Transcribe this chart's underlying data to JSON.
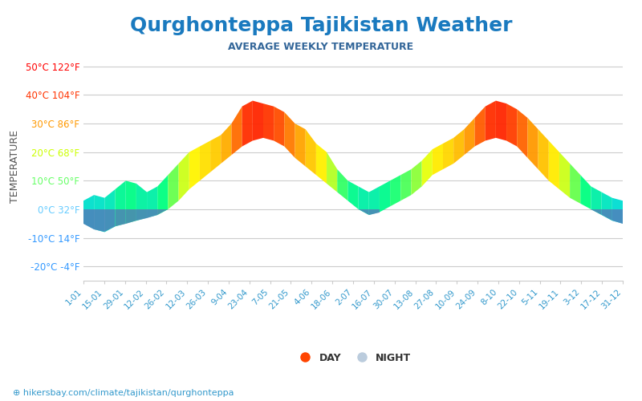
{
  "title": "Qurghonteppa Tajikistan Weather",
  "subtitle": "AVERAGE WEEKLY TEMPERATURE",
  "ylabel": "TEMPERATURE",
  "xlabel_ticks": [
    "1-01",
    "15-01",
    "29-01",
    "12-02",
    "26-02",
    "12-03",
    "26-03",
    "9-04",
    "23-04",
    "7-05",
    "21-05",
    "4-06",
    "18-06",
    "2-07",
    "16-07",
    "30-07",
    "13-08",
    "27-08",
    "10-09",
    "24-09",
    "8-10",
    "22-10",
    "5-11",
    "19-11",
    "3-12",
    "17-12",
    "31-12"
  ],
  "yticks": [
    -20,
    -10,
    0,
    10,
    20,
    30,
    40,
    50
  ],
  "ytick_labels": [
    "-20°C -4°F",
    "-10°C 14°F",
    "0°C 32°F",
    "10°C 50°F",
    "20°C 68°F",
    "30°C 86°F",
    "40°C 104°F",
    "50°C 122°F"
  ],
  "ytick_colors": [
    "#3399ff",
    "#3399ff",
    "#66ccff",
    "#66ff66",
    "#ccff00",
    "#ff9900",
    "#ff3300",
    "#ff0000"
  ],
  "ylim": [
    -25,
    55
  ],
  "watermark": "hikersbay.com/climate/tajikistan/qurghonteppa",
  "title_color": "#1a7abf",
  "subtitle_color": "#336699",
  "day_temps": [
    3,
    5,
    4,
    7,
    10,
    9,
    6,
    8,
    12,
    16,
    20,
    22,
    24,
    26,
    30,
    36,
    38,
    37,
    36,
    34,
    30,
    28,
    23,
    20,
    14,
    10,
    8,
    6,
    8,
    10,
    12,
    14,
    17,
    21,
    23,
    25,
    28,
    32,
    36,
    38,
    37,
    35,
    32,
    28,
    24,
    20,
    16,
    12,
    8,
    6,
    4,
    3
  ],
  "night_temps": [
    -5,
    -7,
    -8,
    -6,
    -5,
    -4,
    -3,
    -2,
    0,
    3,
    7,
    10,
    13,
    16,
    19,
    22,
    24,
    25,
    24,
    22,
    18,
    15,
    12,
    9,
    6,
    3,
    0,
    -2,
    -1,
    1,
    3,
    5,
    8,
    12,
    14,
    16,
    19,
    22,
    24,
    25,
    24,
    22,
    18,
    14,
    10,
    7,
    4,
    2,
    0,
    -2,
    -4,
    -5
  ]
}
